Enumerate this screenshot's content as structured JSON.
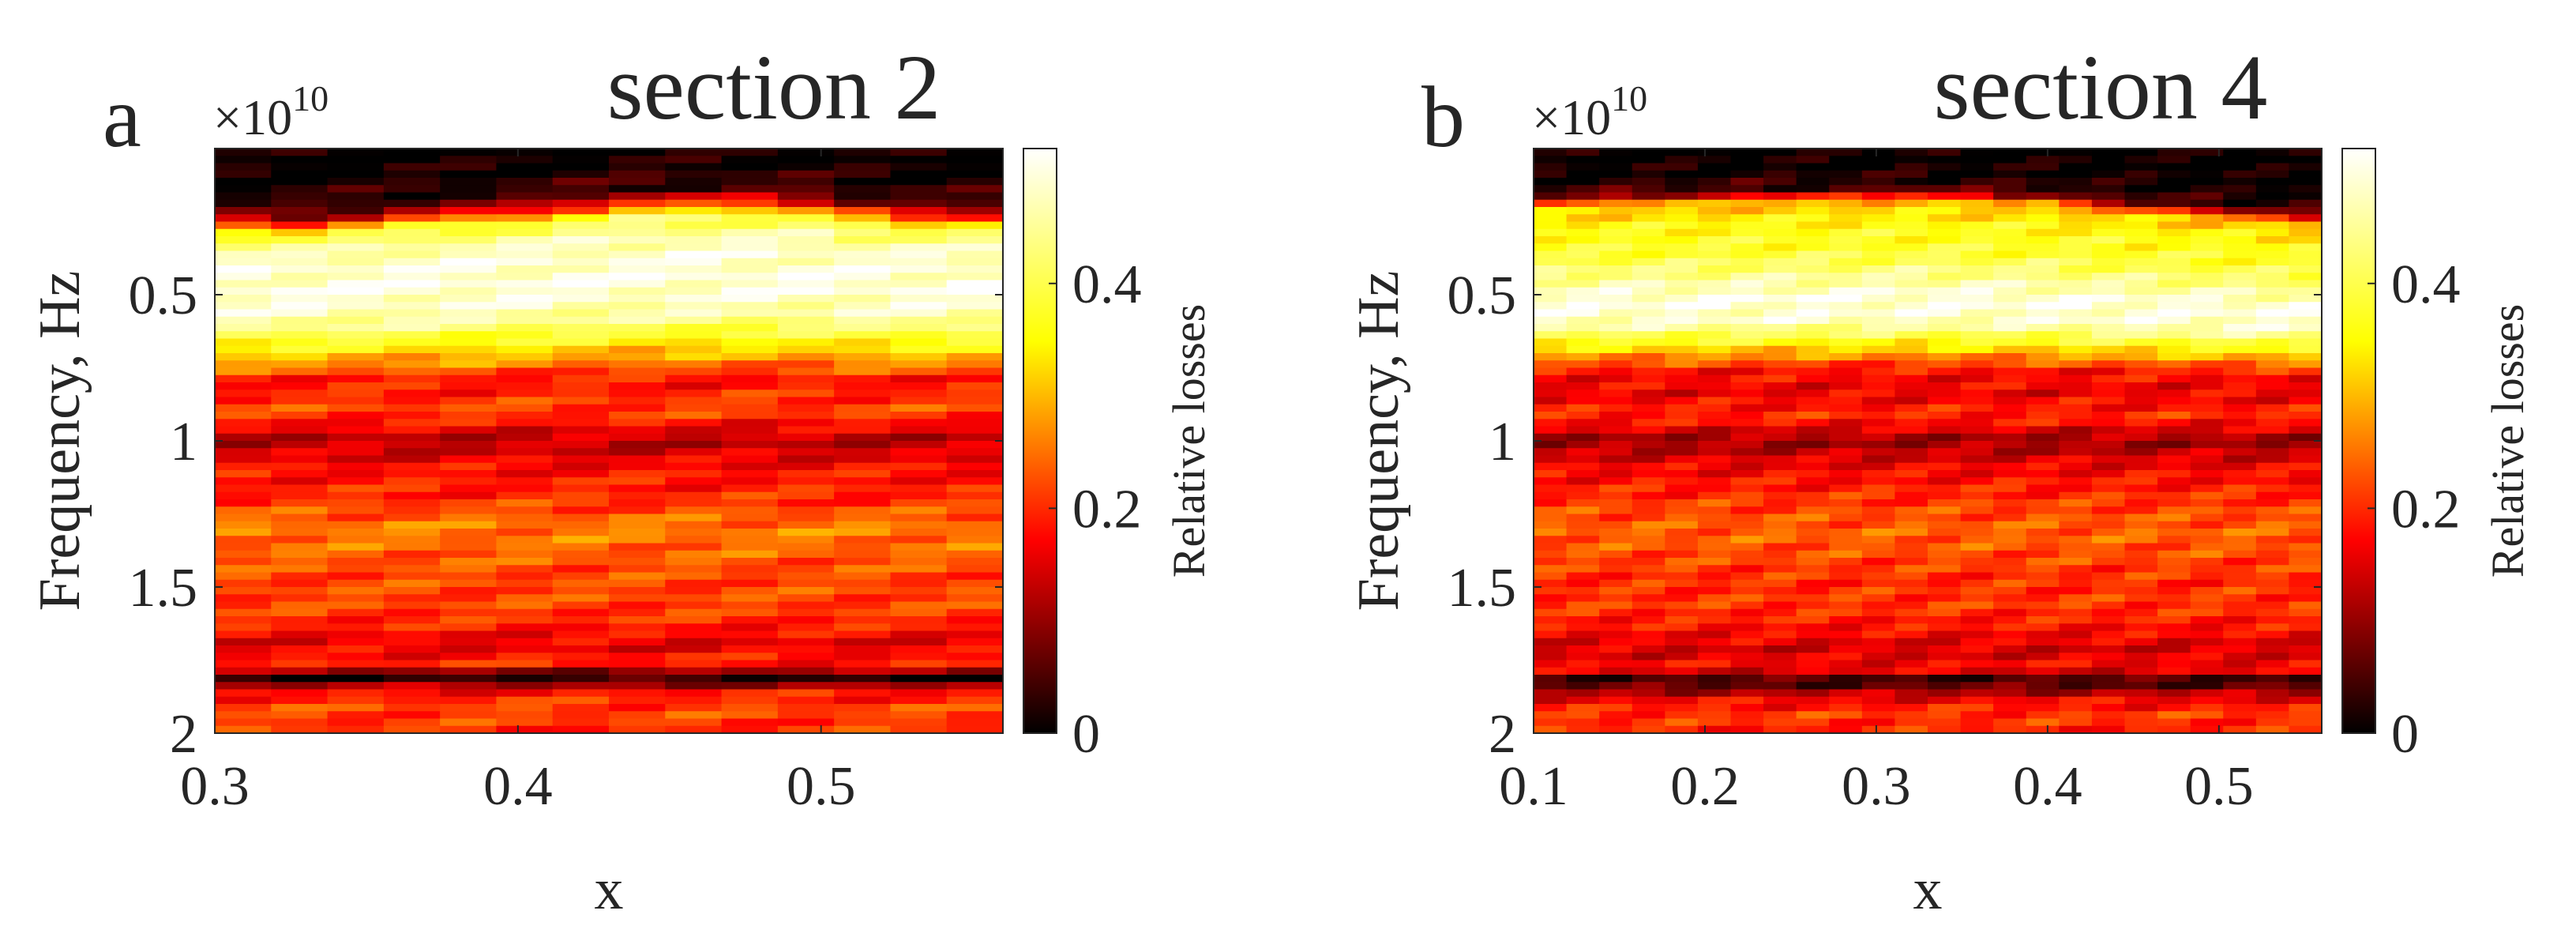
{
  "chart_data": [
    {
      "type": "heatmap",
      "panel_label": "a",
      "title": "section 2",
      "xlabel": "x",
      "ylabel": "Frequency, Hz",
      "y_exponent_base": "×10",
      "y_exponent_power": "10",
      "xlim": [
        0.3,
        0.56
      ],
      "ylim": [
        0,
        2
      ],
      "y_reversed": true,
      "xticks": [
        0.3,
        0.4,
        0.5
      ],
      "xtick_labels": [
        "0.3",
        "0.4",
        "0.5"
      ],
      "yticks": [
        0.5,
        1,
        1.5,
        2
      ],
      "ytick_labels": [
        "0.5",
        "1",
        "1.5",
        "2"
      ],
      "colorbar_label": "Relative losses",
      "clim": [
        0,
        0.52
      ],
      "colorbar_ticks": [
        0,
        0.2,
        0.4
      ],
      "colorbar_tick_labels": [
        "0",
        "0.2",
        "0.4"
      ],
      "x": [
        0.3,
        0.32,
        0.34,
        0.36,
        0.38,
        0.4,
        0.42,
        0.44,
        0.46,
        0.48,
        0.5,
        0.52,
        0.54,
        0.56
      ],
      "frequency_profile": {
        "frequency": [
          0.0,
          0.12,
          0.22,
          0.3,
          0.38,
          0.5,
          0.6,
          0.72,
          0.8,
          0.9,
          1.0,
          1.1,
          1.2,
          1.3,
          1.38,
          1.46,
          1.55,
          1.62,
          1.7,
          1.76,
          1.81,
          1.86,
          1.92,
          2.0
        ],
        "relative_losses": [
          0.0,
          0.01,
          0.05,
          0.4,
          0.48,
          0.5,
          0.46,
          0.3,
          0.18,
          0.22,
          0.12,
          0.18,
          0.2,
          0.26,
          0.24,
          0.22,
          0.22,
          0.2,
          0.15,
          0.2,
          0.02,
          0.18,
          0.22,
          0.2
        ]
      },
      "ridge_top_frequency": [
        0.36,
        0.37,
        0.35,
        0.33,
        0.32,
        0.31,
        0.29,
        0.27,
        0.27,
        0.27,
        0.28,
        0.31,
        0.33,
        0.33
      ]
    },
    {
      "type": "heatmap",
      "panel_label": "b",
      "title": "section 4",
      "xlabel": "x",
      "ylabel": "Frequency, Hz",
      "y_exponent_base": "×10",
      "y_exponent_power": "10",
      "xlim": [
        0.1,
        0.56
      ],
      "ylim": [
        0,
        2
      ],
      "y_reversed": true,
      "xticks": [
        0.1,
        0.2,
        0.3,
        0.4,
        0.5
      ],
      "xtick_labels": [
        "0.1",
        "0.2",
        "0.3",
        "0.4",
        "0.5"
      ],
      "yticks": [
        0.5,
        1,
        1.5,
        2
      ],
      "ytick_labels": [
        "0.5",
        "1",
        "1.5",
        "2"
      ],
      "colorbar_label": "Relative losses",
      "clim": [
        0,
        0.52
      ],
      "colorbar_ticks": [
        0,
        0.2,
        0.4
      ],
      "colorbar_tick_labels": [
        "0",
        "0.2",
        "0.4"
      ],
      "x": [
        0.1,
        0.12,
        0.14,
        0.16,
        0.18,
        0.2,
        0.22,
        0.24,
        0.26,
        0.28,
        0.3,
        0.32,
        0.34,
        0.36,
        0.38,
        0.4,
        0.42,
        0.44,
        0.46,
        0.48,
        0.5,
        0.52,
        0.54,
        0.56
      ],
      "frequency_profile": {
        "frequency": [
          0.0,
          0.1,
          0.16,
          0.2,
          0.28,
          0.36,
          0.44,
          0.52,
          0.6,
          0.68,
          0.76,
          0.84,
          0.92,
          1.0,
          1.08,
          1.16,
          1.24,
          1.32,
          1.4,
          1.48,
          1.56,
          1.64,
          1.72,
          1.78,
          1.82,
          1.88,
          1.94,
          2.0
        ],
        "relative_losses": [
          0.0,
          0.01,
          0.05,
          0.3,
          0.36,
          0.38,
          0.44,
          0.5,
          0.48,
          0.34,
          0.18,
          0.16,
          0.2,
          0.1,
          0.16,
          0.19,
          0.22,
          0.24,
          0.22,
          0.2,
          0.21,
          0.18,
          0.14,
          0.18,
          0.02,
          0.16,
          0.21,
          0.19
        ]
      },
      "ridge_top_frequency": [
        0.19,
        0.19,
        0.18,
        0.18,
        0.18,
        0.18,
        0.17,
        0.17,
        0.17,
        0.17,
        0.17,
        0.16,
        0.17,
        0.17,
        0.18,
        0.18,
        0.2,
        0.21,
        0.22,
        0.23,
        0.24,
        0.25,
        0.26,
        0.27
      ]
    }
  ]
}
